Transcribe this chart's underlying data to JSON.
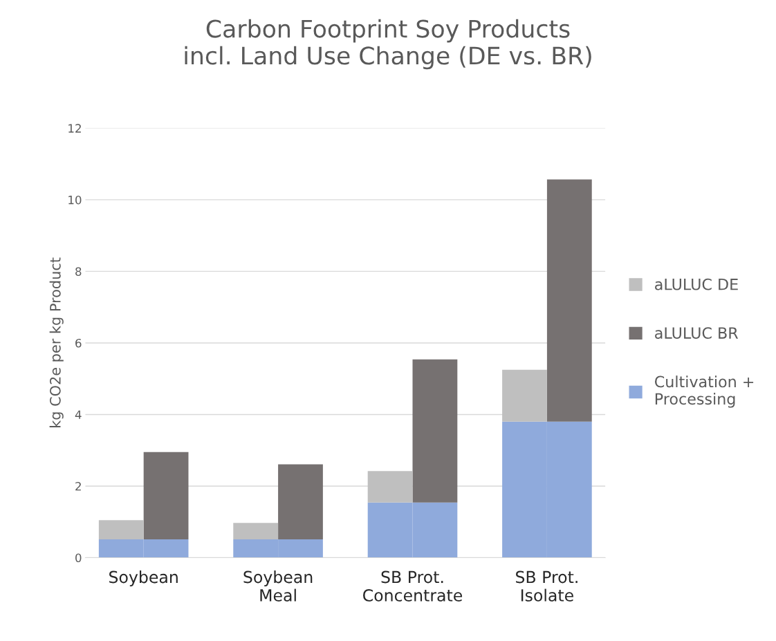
{
  "chart_data": {
    "type": "bar",
    "title": "Carbon Footprint Soy Products\nincl. Land Use Change (DE vs. BR)",
    "ylabel": "kg CO2e per kg Product",
    "categories": [
      "Soybean",
      null,
      null,
      "Soybean\nMeal",
      null,
      null,
      "SB Prot.\nConcentrate",
      null,
      null,
      "SB Prot.\nIsolate",
      null
    ],
    "stacked": true,
    "series": [
      {
        "name": "Cultivation +\nProcessing",
        "color": "#8faadc",
        "values": [
          0.51,
          0.51,
          null,
          0.51,
          0.51,
          null,
          1.54,
          1.54,
          null,
          3.8,
          3.8
        ]
      },
      {
        "name": "aLULUC BR",
        "color": "#767171",
        "values": [
          null,
          2.44,
          null,
          null,
          2.1,
          null,
          null,
          4.0,
          null,
          null,
          6.77
        ]
      },
      {
        "name": "aLULUC DE",
        "color": "#bfbfbf",
        "values": [
          0.54,
          null,
          null,
          0.46,
          null,
          null,
          0.88,
          null,
          null,
          1.45,
          null
        ]
      }
    ],
    "ylim": [
      0,
      12
    ],
    "yticks": [
      0,
      2,
      4,
      6,
      8,
      10,
      12
    ],
    "grid": "y",
    "legend": "right"
  }
}
